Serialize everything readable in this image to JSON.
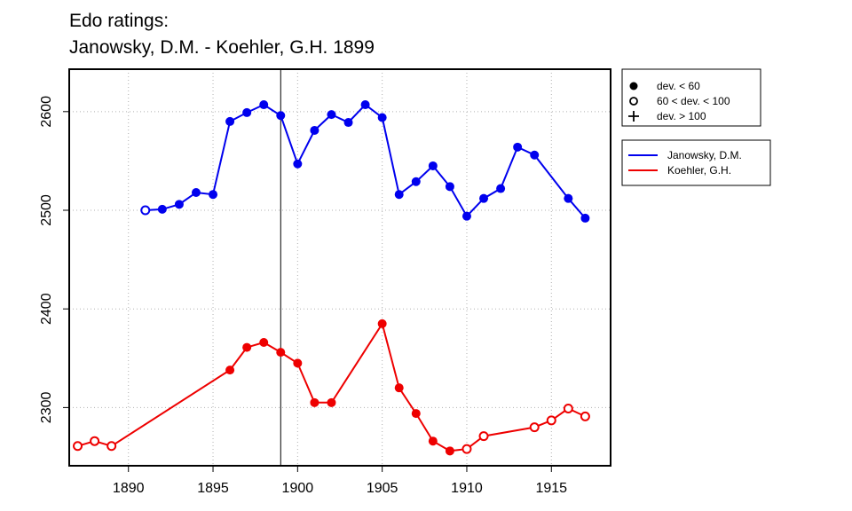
{
  "chart_data": {
    "type": "line",
    "title": "Edo ratings:",
    "subtitle": "Janowsky, D.M. - Koehler, G.H. 1899",
    "xlabel": "",
    "ylabel": "",
    "xlim": [
      1886.5,
      1918.5
    ],
    "ylim": [
      2241,
      2643
    ],
    "xticks": [
      1890,
      1895,
      1900,
      1905,
      1910,
      1915
    ],
    "yticks": [
      2300,
      2400,
      2500,
      2600
    ],
    "grid": true,
    "marker_line_year": 1899,
    "deviation_legend": [
      {
        "marker": "filled",
        "label": "dev. < 60"
      },
      {
        "marker": "open",
        "label": "60 < dev. < 100"
      },
      {
        "marker": "plus",
        "label": "dev. > 100"
      }
    ],
    "series": [
      {
        "name": "Janowsky, D.M.",
        "color": "#0000ee",
        "points": [
          {
            "x": 1891,
            "y": 2500,
            "marker": "open"
          },
          {
            "x": 1892,
            "y": 2501,
            "marker": "filled"
          },
          {
            "x": 1893,
            "y": 2506,
            "marker": "filled"
          },
          {
            "x": 1894,
            "y": 2518,
            "marker": "filled"
          },
          {
            "x": 1895,
            "y": 2516,
            "marker": "filled"
          },
          {
            "x": 1896,
            "y": 2590,
            "marker": "filled"
          },
          {
            "x": 1897,
            "y": 2599,
            "marker": "filled"
          },
          {
            "x": 1898,
            "y": 2607,
            "marker": "filled"
          },
          {
            "x": 1899,
            "y": 2596,
            "marker": "filled"
          },
          {
            "x": 1900,
            "y": 2547,
            "marker": "filled"
          },
          {
            "x": 1901,
            "y": 2581,
            "marker": "filled"
          },
          {
            "x": 1902,
            "y": 2597,
            "marker": "filled"
          },
          {
            "x": 1903,
            "y": 2589,
            "marker": "filled"
          },
          {
            "x": 1904,
            "y": 2607,
            "marker": "filled"
          },
          {
            "x": 1905,
            "y": 2594,
            "marker": "filled"
          },
          {
            "x": 1906,
            "y": 2516,
            "marker": "filled"
          },
          {
            "x": 1907,
            "y": 2529,
            "marker": "filled"
          },
          {
            "x": 1908,
            "y": 2545,
            "marker": "filled"
          },
          {
            "x": 1909,
            "y": 2524,
            "marker": "filled"
          },
          {
            "x": 1910,
            "y": 2494,
            "marker": "filled"
          },
          {
            "x": 1911,
            "y": 2512,
            "marker": "filled"
          },
          {
            "x": 1912,
            "y": 2522,
            "marker": "filled"
          },
          {
            "x": 1913,
            "y": 2564,
            "marker": "filled"
          },
          {
            "x": 1914,
            "y": 2556,
            "marker": "filled"
          },
          {
            "x": 1916,
            "y": 2512,
            "marker": "filled"
          },
          {
            "x": 1917,
            "y": 2492,
            "marker": "filled"
          }
        ]
      },
      {
        "name": "Koehler, G.H.",
        "color": "#ee0000",
        "points": [
          {
            "x": 1887,
            "y": 2261,
            "marker": "open"
          },
          {
            "x": 1888,
            "y": 2266,
            "marker": "open"
          },
          {
            "x": 1889,
            "y": 2261,
            "marker": "open"
          },
          {
            "x": 1896,
            "y": 2338,
            "marker": "filled"
          },
          {
            "x": 1897,
            "y": 2361,
            "marker": "filled"
          },
          {
            "x": 1898,
            "y": 2366,
            "marker": "filled"
          },
          {
            "x": 1899,
            "y": 2356,
            "marker": "filled"
          },
          {
            "x": 1900,
            "y": 2345,
            "marker": "filled"
          },
          {
            "x": 1901,
            "y": 2305,
            "marker": "filled"
          },
          {
            "x": 1902,
            "y": 2305,
            "marker": "filled"
          },
          {
            "x": 1905,
            "y": 2385,
            "marker": "filled"
          },
          {
            "x": 1906,
            "y": 2320,
            "marker": "filled"
          },
          {
            "x": 1907,
            "y": 2294,
            "marker": "filled"
          },
          {
            "x": 1908,
            "y": 2266,
            "marker": "filled"
          },
          {
            "x": 1909,
            "y": 2256,
            "marker": "filled"
          },
          {
            "x": 1910,
            "y": 2258,
            "marker": "open"
          },
          {
            "x": 1911,
            "y": 2271,
            "marker": "open"
          },
          {
            "x": 1914,
            "y": 2280,
            "marker": "open"
          },
          {
            "x": 1915,
            "y": 2287,
            "marker": "open"
          },
          {
            "x": 1916,
            "y": 2299,
            "marker": "open"
          },
          {
            "x": 1917,
            "y": 2291,
            "marker": "open"
          }
        ]
      }
    ]
  }
}
